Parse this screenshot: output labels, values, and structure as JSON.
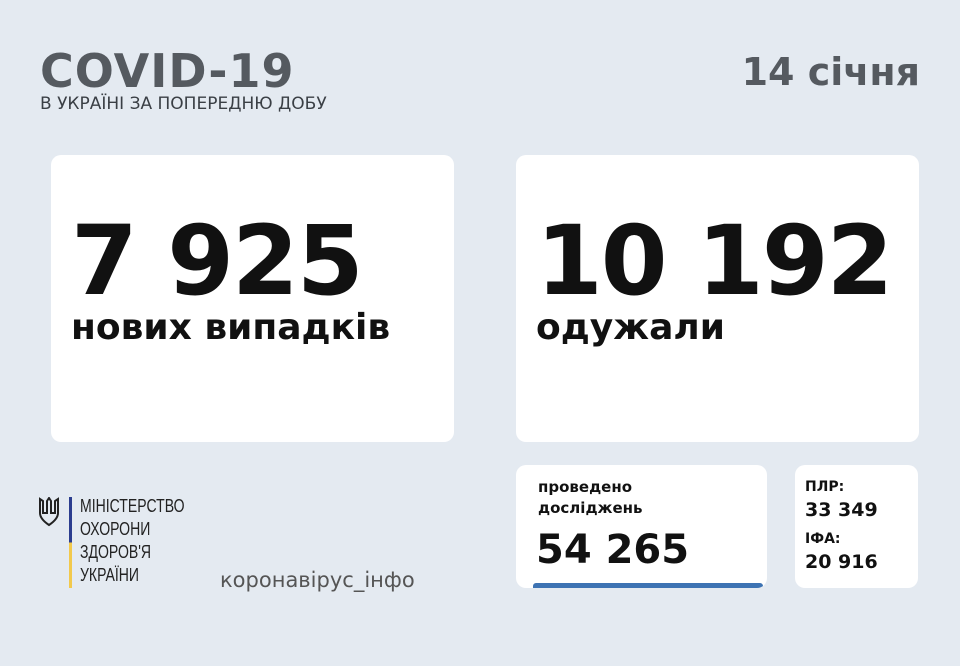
{
  "header": {
    "title": "COVID-19",
    "subtitle": "В УКРАЇНІ ЗА ПОПЕРЕДНЮ ДОБУ",
    "date": "14 січня"
  },
  "new_cases": {
    "value": "7 925",
    "label": "нових випадків"
  },
  "recovered": {
    "value": "10 192",
    "label": "одужали"
  },
  "tests": {
    "label_line1": "проведено",
    "label_line2": "досліджень",
    "value": "54 265"
  },
  "breakdown": {
    "pcr_label": "ПЛР:",
    "pcr_value": "33 349",
    "ifa_label": "ІФА:",
    "ifa_value": "20 916"
  },
  "footer": {
    "ministry": [
      "МІНІСТЕРСТВО",
      "ОХОРОНИ",
      "ЗДОРОВ'Я",
      "УКРАЇНИ"
    ],
    "site": "коронавірус_інфо",
    "logo_icon": "tryzub-icon"
  },
  "colors": {
    "background": "#e4eaf1",
    "accent_blue": "#3d73b3",
    "flag_blue": "#2b3d8f",
    "flag_yellow": "#f2c94c"
  }
}
